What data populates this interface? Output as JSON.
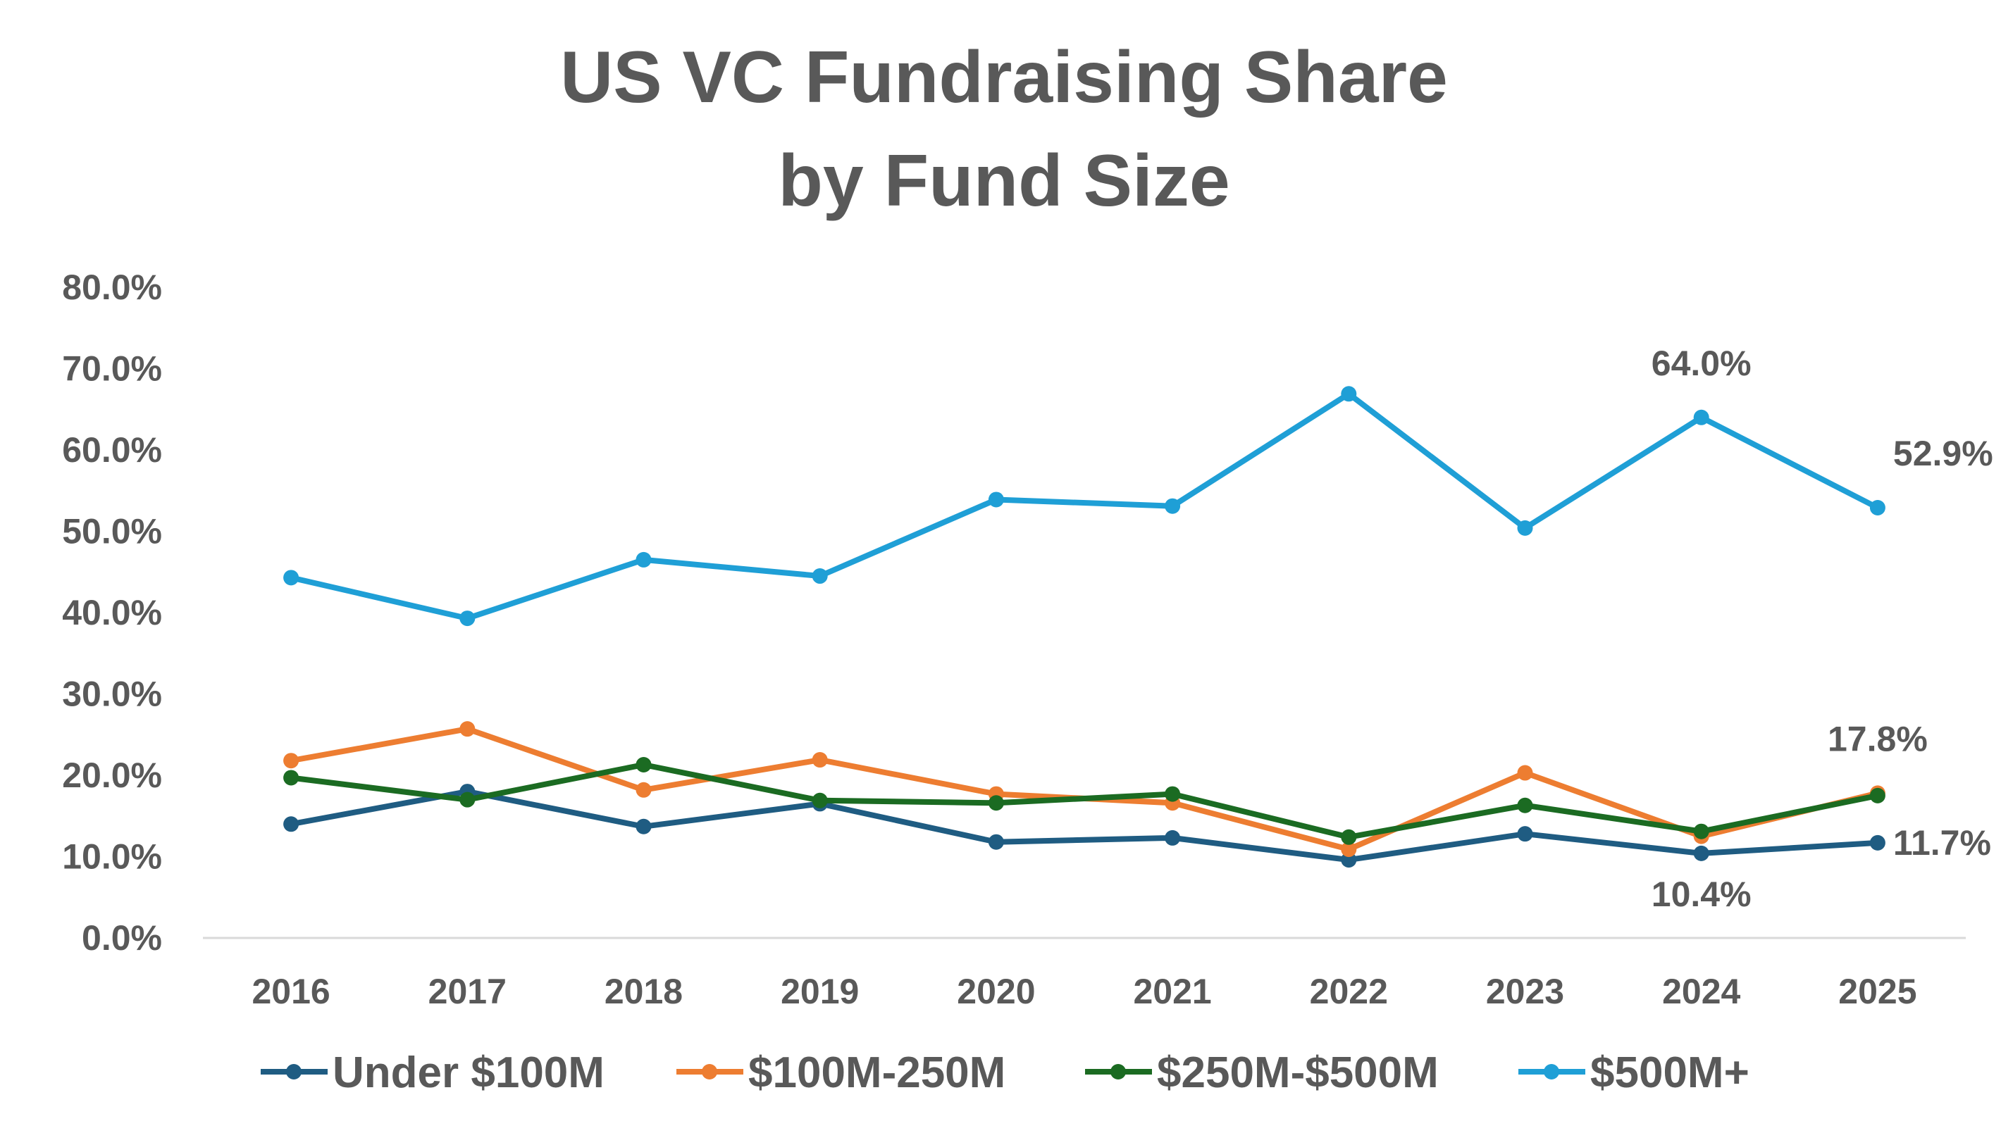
{
  "chart_data": {
    "type": "line",
    "title": [
      "US VC Fundraising Share",
      "by Fund Size"
    ],
    "xlabel": "",
    "ylabel": "",
    "categories": [
      "2016",
      "2017",
      "2018",
      "2019",
      "2020",
      "2021",
      "2022",
      "2023",
      "2024",
      "2025"
    ],
    "y_ticks": [
      "0.0%",
      "10.0%",
      "20.0%",
      "30.0%",
      "40.0%",
      "50.0%",
      "60.0%",
      "70.0%",
      "80.0%"
    ],
    "ylim": [
      0,
      80
    ],
    "grid": false,
    "legend_position": "bottom",
    "series": [
      {
        "name": "Under $100M",
        "color": "#1f5c82",
        "values": [
          14.0,
          18.0,
          13.7,
          16.5,
          11.8,
          12.3,
          9.6,
          12.8,
          10.4,
          11.7
        ]
      },
      {
        "name": "$100M-250M",
        "color": "#ed7d31",
        "values": [
          21.8,
          25.7,
          18.2,
          21.9,
          17.7,
          16.6,
          10.9,
          20.3,
          12.5,
          17.8
        ]
      },
      {
        "name": "$250M-$500M",
        "color": "#1b6b22",
        "values": [
          19.7,
          17.0,
          21.3,
          16.9,
          16.6,
          17.7,
          12.4,
          16.3,
          13.1,
          17.5
        ]
      },
      {
        "name": "$500M+",
        "color": "#1f9fd6",
        "values": [
          44.3,
          39.3,
          46.5,
          44.5,
          53.9,
          53.1,
          66.9,
          50.4,
          64.0,
          52.9
        ]
      }
    ],
    "data_labels": [
      {
        "series": "$500M+",
        "category": "2024",
        "text": "64.0%",
        "placement": "above"
      },
      {
        "series": "$500M+",
        "category": "2025",
        "text": "52.9%",
        "placement": "above-right"
      },
      {
        "series": "$100M-250M",
        "category": "2025",
        "text": "17.8%",
        "placement": "above"
      },
      {
        "series": "Under $100M",
        "category": "2024",
        "text": "10.4%",
        "placement": "below"
      },
      {
        "series": "Under $100M",
        "category": "2025",
        "text": "11.7%",
        "placement": "right"
      }
    ]
  }
}
